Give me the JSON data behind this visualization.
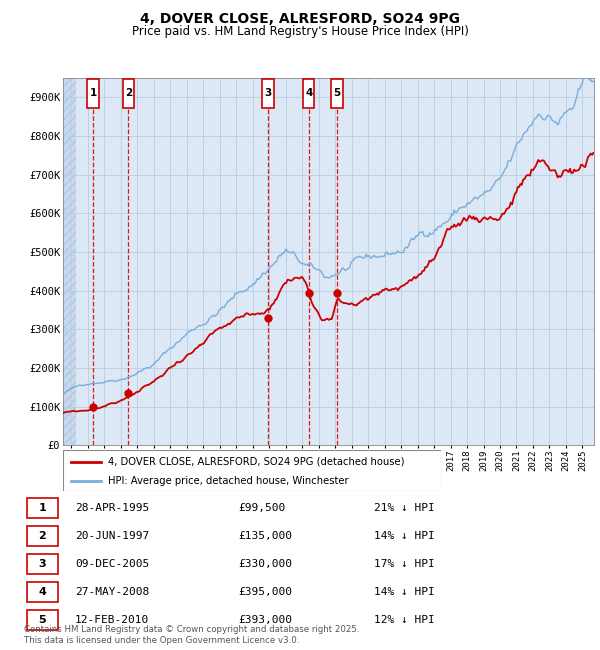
{
  "title": "4, DOVER CLOSE, ALRESFORD, SO24 9PG",
  "subtitle": "Price paid vs. HM Land Registry's House Price Index (HPI)",
  "ylabel_ticks": [
    "£0",
    "£100K",
    "£200K",
    "£300K",
    "£400K",
    "£500K",
    "£600K",
    "£700K",
    "£800K",
    "£900K"
  ],
  "ytick_values": [
    0,
    100000,
    200000,
    300000,
    400000,
    500000,
    600000,
    700000,
    800000,
    900000
  ],
  "ylim": [
    0,
    950000
  ],
  "xlim_start": 1993.5,
  "xlim_end": 2025.7,
  "sales": [
    {
      "num": 1,
      "date": "28-APR-1995",
      "price": 99500,
      "pct": "21%",
      "x": 1995.32
    },
    {
      "num": 2,
      "date": "20-JUN-1997",
      "price": 135000,
      "pct": "14%",
      "x": 1997.46
    },
    {
      "num": 3,
      "date": "09-DEC-2005",
      "price": 330000,
      "pct": "17%",
      "x": 2005.93
    },
    {
      "num": 4,
      "date": "27-MAY-2008",
      "price": 395000,
      "pct": "14%",
      "x": 2008.4
    },
    {
      "num": 5,
      "date": "12-FEB-2010",
      "price": 393000,
      "pct": "12%",
      "x": 2010.12
    }
  ],
  "legend_line1": "4, DOVER CLOSE, ALRESFORD, SO24 9PG (detached house)",
  "legend_line2": "HPI: Average price, detached house, Winchester",
  "footer": "Contains HM Land Registry data © Crown copyright and database right 2025.\nThis data is licensed under the Open Government Licence v3.0.",
  "price_line_color": "#cc0000",
  "hpi_line_color": "#7aaddb",
  "vline_color": "#dd0000",
  "grid_color": "#c8d8e8",
  "table_rows": [
    [
      1,
      "28-APR-1995",
      "£99,500",
      "21% ↓ HPI"
    ],
    [
      2,
      "20-JUN-1997",
      "£135,000",
      "14% ↓ HPI"
    ],
    [
      3,
      "09-DEC-2005",
      "£330,000",
      "17% ↓ HPI"
    ],
    [
      4,
      "27-MAY-2008",
      "£395,000",
      "14% ↓ HPI"
    ],
    [
      5,
      "12-FEB-2010",
      "£393,000",
      "12% ↓ HPI"
    ]
  ]
}
